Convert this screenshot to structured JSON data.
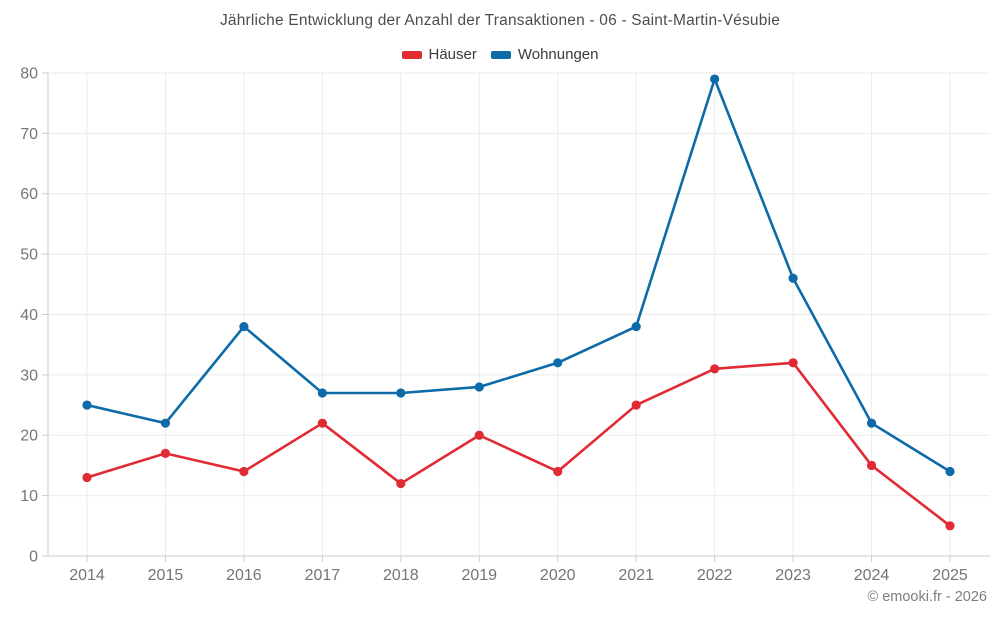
{
  "title": "Jährliche Entwicklung der Anzahl der Transaktionen - 06 - Saint-Martin-Vésubie",
  "footer": "© emooki.fr - 2026",
  "colors": {
    "hauser": "#e02b35",
    "wohnungen": "#0d6ba8",
    "grid": "#ebebeb",
    "axis": "#cccccc",
    "tick_label": "#757575",
    "background": "#ffffff"
  },
  "chart_data": {
    "type": "line",
    "categories": [
      "2014",
      "2015",
      "2016",
      "2017",
      "2018",
      "2019",
      "2020",
      "2021",
      "2022",
      "2023",
      "2024",
      "2025"
    ],
    "series": [
      {
        "name": "Häuser",
        "color": "#e02b35",
        "values": [
          13,
          17,
          14,
          22,
          12,
          20,
          14,
          25,
          31,
          32,
          15,
          5
        ]
      },
      {
        "name": "Wohnungen",
        "color": "#0d6ba8",
        "values": [
          25,
          22,
          38,
          27,
          27,
          28,
          32,
          38,
          79,
          46,
          22,
          14
        ]
      }
    ],
    "title": "Jährliche Entwicklung der Anzahl der Transaktionen - 06 - Saint-Martin-Vésubie",
    "xlabel": "",
    "ylabel": "",
    "ylim": [
      0,
      80
    ],
    "ytick_step": 10,
    "grid": true,
    "legend_position": "top"
  }
}
